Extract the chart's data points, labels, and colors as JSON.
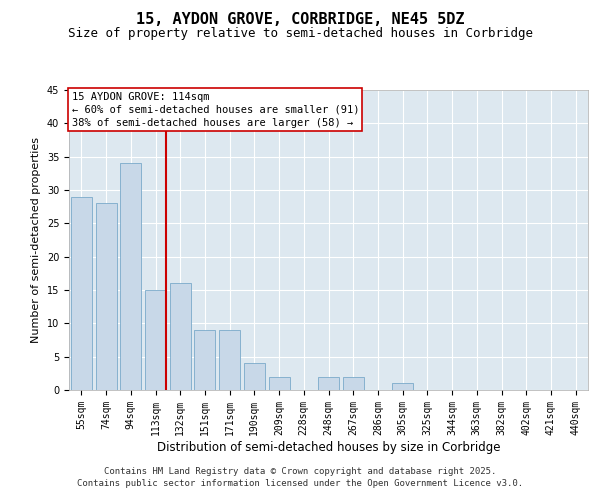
{
  "title1": "15, AYDON GROVE, CORBRIDGE, NE45 5DZ",
  "title2": "Size of property relative to semi-detached houses in Corbridge",
  "xlabel": "Distribution of semi-detached houses by size in Corbridge",
  "ylabel": "Number of semi-detached properties",
  "categories": [
    "55sqm",
    "74sqm",
    "94sqm",
    "113sqm",
    "132sqm",
    "151sqm",
    "171sqm",
    "190sqm",
    "209sqm",
    "228sqm",
    "248sqm",
    "267sqm",
    "286sqm",
    "305sqm",
    "325sqm",
    "344sqm",
    "363sqm",
    "382sqm",
    "402sqm",
    "421sqm",
    "440sqm"
  ],
  "values": [
    29,
    28,
    34,
    15,
    16,
    9,
    9,
    4,
    2,
    0,
    2,
    2,
    0,
    1,
    0,
    0,
    0,
    0,
    0,
    0,
    0
  ],
  "bar_color": "#c8d8e8",
  "bar_edge_color": "#7aaaca",
  "highlight_index": 3,
  "vline_color": "#cc0000",
  "ylim": [
    0,
    45
  ],
  "yticks": [
    0,
    5,
    10,
    15,
    20,
    25,
    30,
    35,
    40,
    45
  ],
  "annotation_title": "15 AYDON GROVE: 114sqm",
  "annotation_line1": "← 60% of semi-detached houses are smaller (91)",
  "annotation_line2": "38% of semi-detached houses are larger (58) →",
  "annotation_box_color": "#cc0000",
  "footnote1": "Contains HM Land Registry data © Crown copyright and database right 2025.",
  "footnote2": "Contains public sector information licensed under the Open Government Licence v3.0.",
  "bg_color": "#dde8f0",
  "grid_color": "#ffffff",
  "title1_fontsize": 11,
  "title2_fontsize": 9,
  "xlabel_fontsize": 8.5,
  "ylabel_fontsize": 8,
  "tick_fontsize": 7,
  "annotation_fontsize": 7.5,
  "footnote_fontsize": 6.5
}
